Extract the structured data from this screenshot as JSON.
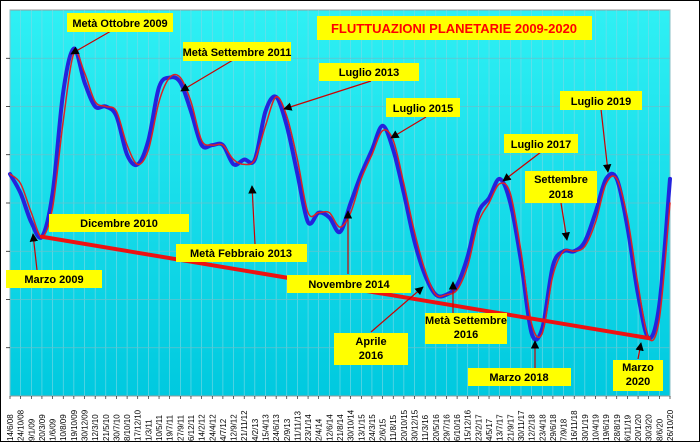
{
  "chart_data": {
    "type": "line",
    "title": "FLUTTUAZIONI PLANETARIE 2009-2020",
    "xlabel": "",
    "ylabel": "",
    "grid": true,
    "x_tick_labels": [
      "14/6/08",
      "24/10/08",
      "9/1/09",
      "20/3/09",
      "1/6/09",
      "10/8/09",
      "19/10/09",
      "30/12/09",
      "12/3/10",
      "21/5/10",
      "30/7/10",
      "8/10/10",
      "17/12/10",
      "1/3/11",
      "10/5/11",
      "19/7/11",
      "27/9/11",
      "6/12/11",
      "14/2/12",
      "24/4/12",
      "4/7/12",
      "12/9/12",
      "21/11/12",
      "4/2/13",
      "15/4/13",
      "24/6/13",
      "2/9/13",
      "11/11/13",
      "23/1/14",
      "2/4/14",
      "12/6/14",
      "21/8/14",
      "30/10/14",
      "13/1/15",
      "24/3/15",
      "2/6/15",
      "11/8/15",
      "20/10/15",
      "30/12/15",
      "11/3/16",
      "20/5/16",
      "29/7/16",
      "6/10/16",
      "15/12/16",
      "23/2/17",
      "4/5/17",
      "13/7/17",
      "21/9/17",
      "30/11/17",
      "12/2/18",
      "23/4/18",
      "29/6/18",
      "7/9/18",
      "16/11/18",
      "30/1/19",
      "10/4/19",
      "19/6/19",
      "28/8/19",
      "6/11/19",
      "20/1/20",
      "30/3/20",
      "8/6/20",
      "26/10/20"
    ],
    "series": [
      {
        "color": "#2323dd",
        "points": [
          [
            0,
            6.6
          ],
          [
            1,
            6.2
          ],
          [
            2,
            5.6
          ],
          [
            3,
            5.3
          ],
          [
            4,
            6.2
          ],
          [
            5,
            8.3
          ],
          [
            6,
            9.2
          ],
          [
            7,
            8.5
          ],
          [
            8,
            8.0
          ],
          [
            9,
            8.0
          ],
          [
            10,
            7.8
          ],
          [
            11,
            7.0
          ],
          [
            12,
            6.8
          ],
          [
            13,
            7.3
          ],
          [
            14,
            8.4
          ],
          [
            15,
            8.6
          ],
          [
            16,
            8.5
          ],
          [
            17,
            7.9
          ],
          [
            18,
            7.2
          ],
          [
            19,
            7.2
          ],
          [
            20,
            7.2
          ],
          [
            21,
            6.8
          ],
          [
            22,
            6.9
          ],
          [
            23,
            6.9
          ],
          [
            24,
            7.9
          ],
          [
            25,
            8.2
          ],
          [
            26,
            7.6
          ],
          [
            27,
            6.6
          ],
          [
            28,
            5.6
          ],
          [
            29,
            5.8
          ],
          [
            30,
            5.7
          ],
          [
            31,
            5.4
          ],
          [
            32,
            6.0
          ],
          [
            33,
            6.6
          ],
          [
            34,
            7.1
          ],
          [
            35,
            7.6
          ],
          [
            36,
            7.1
          ],
          [
            37,
            6.2
          ],
          [
            38,
            5.2
          ],
          [
            39,
            4.5
          ],
          [
            40,
            4.1
          ],
          [
            41,
            4.1
          ],
          [
            42,
            4.3
          ],
          [
            43,
            4.9
          ],
          [
            44,
            5.8
          ],
          [
            45,
            6.1
          ],
          [
            46,
            6.5
          ],
          [
            47,
            6.0
          ],
          [
            48,
            4.8
          ],
          [
            49,
            3.3
          ],
          [
            50,
            3.4
          ],
          [
            51,
            4.7
          ],
          [
            52,
            5.0
          ],
          [
            53,
            5.0
          ],
          [
            54,
            5.2
          ],
          [
            55,
            5.8
          ],
          [
            56,
            6.5
          ],
          [
            57,
            6.5
          ],
          [
            58,
            5.5
          ],
          [
            59,
            4.1
          ],
          [
            60,
            3.2
          ],
          [
            61,
            3.9
          ],
          [
            62,
            6.5
          ]
        ]
      },
      {
        "color": "#dd2222",
        "points": [
          [
            0,
            6.6
          ],
          [
            1,
            6.4
          ],
          [
            2,
            5.8
          ],
          [
            3,
            5.3
          ],
          [
            4,
            5.9
          ],
          [
            5,
            7.7
          ],
          [
            6,
            9.1
          ],
          [
            7,
            8.7
          ],
          [
            8,
            8.1
          ],
          [
            9,
            8.0
          ],
          [
            10,
            7.9
          ],
          [
            11,
            7.2
          ],
          [
            12,
            6.8
          ],
          [
            13,
            7.1
          ],
          [
            14,
            8.1
          ],
          [
            15,
            8.6
          ],
          [
            16,
            8.6
          ],
          [
            17,
            8.1
          ],
          [
            18,
            7.3
          ],
          [
            19,
            7.2
          ],
          [
            20,
            7.2
          ],
          [
            21,
            6.9
          ],
          [
            22,
            6.8
          ],
          [
            23,
            6.9
          ],
          [
            24,
            7.6
          ],
          [
            25,
            8.2
          ],
          [
            26,
            7.8
          ],
          [
            27,
            6.9
          ],
          [
            28,
            5.8
          ],
          [
            29,
            5.8
          ],
          [
            30,
            5.8
          ],
          [
            31,
            5.5
          ],
          [
            32,
            5.8
          ],
          [
            33,
            6.5
          ],
          [
            34,
            7.0
          ],
          [
            35,
            7.5
          ],
          [
            36,
            7.3
          ],
          [
            37,
            6.4
          ],
          [
            38,
            5.4
          ],
          [
            39,
            4.6
          ],
          [
            40,
            4.1
          ],
          [
            41,
            4.1
          ],
          [
            42,
            4.2
          ],
          [
            43,
            4.7
          ],
          [
            44,
            5.6
          ],
          [
            45,
            6.0
          ],
          [
            46,
            6.4
          ],
          [
            47,
            6.2
          ],
          [
            48,
            5.0
          ],
          [
            49,
            3.5
          ],
          [
            50,
            3.3
          ],
          [
            51,
            4.5
          ],
          [
            52,
            5.0
          ],
          [
            53,
            5.0
          ],
          [
            54,
            5.1
          ],
          [
            55,
            5.6
          ],
          [
            56,
            6.4
          ],
          [
            57,
            6.5
          ],
          [
            58,
            5.7
          ],
          [
            59,
            4.3
          ],
          [
            60,
            3.2
          ],
          [
            61,
            3.6
          ],
          [
            62,
            6.0
          ]
        ]
      },
      {
        "color": "#ee1111",
        "points": [
          [
            3,
            5.3
          ],
          [
            60,
            3.2
          ]
        ]
      }
    ],
    "annotations": [
      {
        "id": "ott-2009",
        "text": "Metà Ottobre 2009"
      },
      {
        "id": "dic-2010",
        "text": "Dicembre 2010"
      },
      {
        "id": "set-2011",
        "text": "Metà Settembre 2011"
      },
      {
        "id": "feb-2013",
        "text": "Metà Febbraio 2013"
      },
      {
        "id": "lug-2013",
        "text": "Luglio 2013"
      },
      {
        "id": "nov-2014",
        "text": "Novembre 2014"
      },
      {
        "id": "lug-2015",
        "text": "Luglio 2015"
      },
      {
        "id": "mar-2009",
        "text": "Marzo 2009"
      },
      {
        "id": "apr-2016-a",
        "text": "Aprile"
      },
      {
        "id": "apr-2016-b",
        "text": "2016"
      },
      {
        "id": "set-2016-a",
        "text": "Metà Settembre"
      },
      {
        "id": "set-2016-b",
        "text": "2016"
      },
      {
        "id": "lug-2017",
        "text": "Luglio 2017"
      },
      {
        "id": "set-2018-a",
        "text": "Settembre"
      },
      {
        "id": "set-2018-b",
        "text": "2018"
      },
      {
        "id": "mar-2018",
        "text": "Marzo 2018"
      },
      {
        "id": "lug-2019",
        "text": "Luglio 2019"
      },
      {
        "id": "mar-2020-a",
        "text": "Marzo"
      },
      {
        "id": "mar-2020-b",
        "text": "2020"
      }
    ],
    "colors": {
      "plot_background": "#00e5ee",
      "grid": "#7fd8e4",
      "note_box": "#ffff00",
      "arrow": "#cc0000",
      "title_text": "#ff0000"
    }
  }
}
